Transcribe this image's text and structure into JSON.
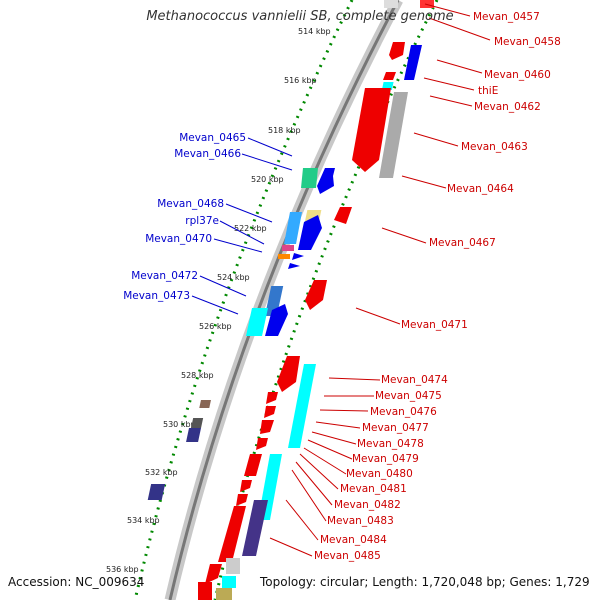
{
  "title": "Methanococcus vannielii SB, complete genome",
  "accession": "Accession: NC_009634",
  "topology": "Topology: circular; Length: 1,720,048 bp; Genes: 1,729",
  "ticks": [
    "514 kbp",
    "516 kbp",
    "518 kbp",
    "520 kbp",
    "522 kbp",
    "524 kbp",
    "526 kbp",
    "528 kbp",
    "530 kbp",
    "532 kbp",
    "534 kbp",
    "536 kbp"
  ],
  "labels_left": [
    "Mevan_0465",
    "Mevan_0466",
    "Mevan_0468",
    "rpl37e",
    "Mevan_0470",
    "Mevan_0472",
    "Mevan_0473"
  ],
  "labels_right": [
    "Mevan_0457",
    "Mevan_0458",
    "Mevan_0460",
    "thiE",
    "Mevan_0462",
    "Mevan_0463",
    "Mevan_0464",
    "Mevan_0467",
    "Mevan_0471",
    "Mevan_0474",
    "Mevan_0475",
    "Mevan_0476",
    "Mevan_0477",
    "Mevan_0478",
    "Mevan_0479",
    "Mevan_0480",
    "Mevan_0481",
    "Mevan_0482",
    "Mevan_0483",
    "Mevan_0484",
    "Mevan_0485"
  ],
  "colors": {
    "forward": "#ee0000",
    "reverse": "#0000ee",
    "backbone": "#888888",
    "tick": "#008800",
    "label_left": "#0000cc",
    "label_right": "#cc0000"
  }
}
